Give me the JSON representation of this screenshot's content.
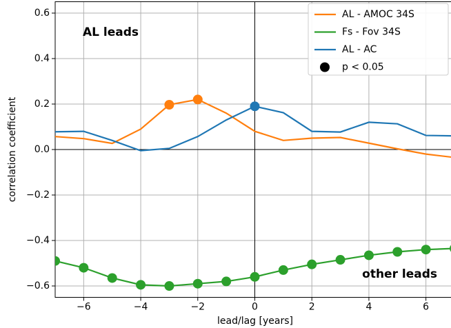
{
  "chart_data": {
    "type": "line",
    "x_label": "lead/lag [years]",
    "y_label": "correlation coefficient",
    "x": [
      -7,
      -6,
      -5,
      -4,
      -3,
      -2,
      -1,
      0,
      1,
      2,
      3,
      4,
      5,
      6,
      7
    ],
    "series": [
      {
        "name": "AL - AMOC 34S",
        "color": "#ff7f0e",
        "values": [
          0.057,
          0.048,
          0.027,
          0.09,
          0.197,
          0.22,
          0.16,
          0.08,
          0.04,
          0.05,
          0.053,
          0.028,
          0.003,
          -0.02,
          -0.035
        ],
        "significant": [
          false,
          false,
          false,
          false,
          true,
          true,
          false,
          false,
          false,
          false,
          false,
          false,
          false,
          false,
          false
        ]
      },
      {
        "name": "Fs - Fov 34S",
        "color": "#2ca02c",
        "values": [
          -0.49,
          -0.52,
          -0.565,
          -0.595,
          -0.6,
          -0.59,
          -0.58,
          -0.56,
          -0.53,
          -0.505,
          -0.485,
          -0.465,
          -0.45,
          -0.44,
          -0.435
        ],
        "significant": [
          true,
          true,
          true,
          true,
          true,
          true,
          true,
          true,
          true,
          true,
          true,
          true,
          true,
          true,
          true
        ]
      },
      {
        "name": "AL - AC",
        "color": "#1f77b4",
        "values": [
          0.078,
          0.08,
          0.04,
          -0.005,
          0.005,
          0.057,
          0.13,
          0.19,
          0.162,
          0.08,
          0.077,
          0.12,
          0.113,
          0.062,
          0.06
        ],
        "significant": [
          false,
          false,
          false,
          false,
          false,
          false,
          false,
          true,
          false,
          false,
          false,
          false,
          false,
          false,
          false
        ]
      }
    ],
    "significance_label": "p < 0.05",
    "annotations": [
      "AL leads",
      "other leads"
    ],
    "xlim": [
      -7,
      7
    ],
    "ylim": [
      -0.65,
      0.65
    ],
    "xticks": [
      {
        "value": -6,
        "label": "−6"
      },
      {
        "value": -4,
        "label": "−4"
      },
      {
        "value": -2,
        "label": "−2"
      },
      0,
      2,
      4,
      6
    ],
    "yticks": [
      {
        "value": -0.6,
        "label": "−0.6"
      },
      {
        "value": -0.4,
        "label": "−0.4"
      },
      {
        "value": -0.2,
        "label": "−0.2"
      },
      {
        "value": 0,
        "label": "0.0"
      },
      0.2,
      0.4,
      0.6
    ],
    "grid": true,
    "legend_position": "upper right"
  }
}
